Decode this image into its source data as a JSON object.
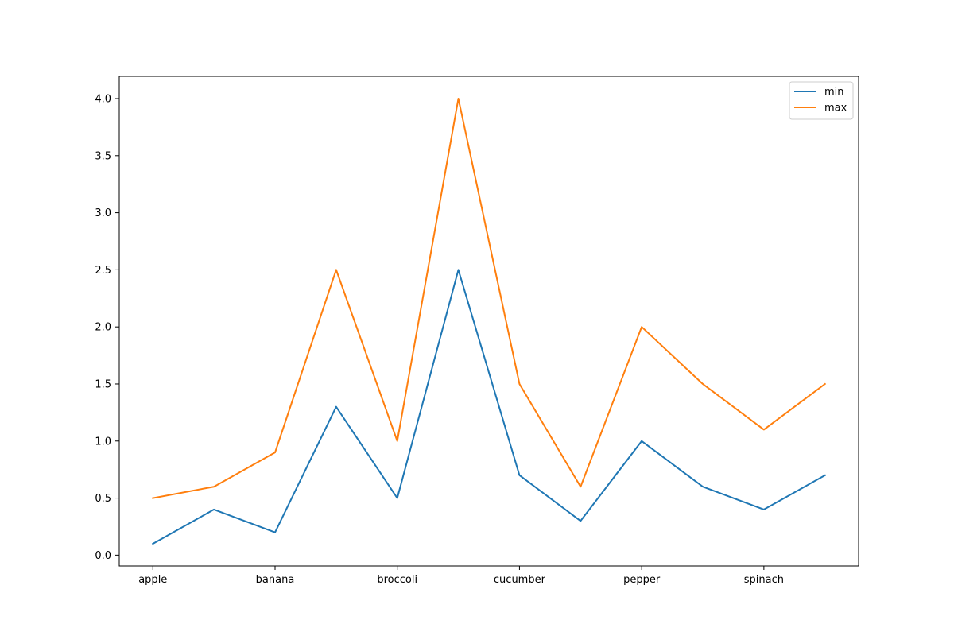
{
  "chart_data": {
    "type": "line",
    "title": "",
    "xlabel": "",
    "ylabel": "",
    "x": [
      0,
      1,
      2,
      3,
      4,
      5,
      6,
      7,
      8,
      9,
      10,
      11
    ],
    "xticks": [
      {
        "x": 0,
        "label": "apple"
      },
      {
        "x": 2,
        "label": "banana"
      },
      {
        "x": 4,
        "label": "broccoli"
      },
      {
        "x": 6,
        "label": "cucumber"
      },
      {
        "x": 8,
        "label": "pepper"
      },
      {
        "x": 10,
        "label": "spinach"
      }
    ],
    "yticks": [
      "0.0",
      "0.5",
      "1.0",
      "1.5",
      "2.0",
      "2.5",
      "3.0",
      "3.5",
      "4.0"
    ],
    "ylim": [
      -0.095,
      4.195
    ],
    "xlim": [
      -0.55,
      11.55
    ],
    "grid": false,
    "legend": "top-right",
    "series": [
      {
        "name": "min",
        "color": "#1f77b4",
        "values": [
          0.1,
          0.4,
          0.2,
          1.3,
          0.5,
          2.5,
          0.7,
          0.3,
          1.0,
          0.6,
          0.4,
          0.7
        ]
      },
      {
        "name": "max",
        "color": "#ff7f0e",
        "values": [
          0.5,
          0.6,
          0.9,
          2.5,
          1.0,
          4.0,
          1.5,
          0.6,
          2.0,
          1.5,
          1.1,
          1.5
        ]
      }
    ]
  }
}
